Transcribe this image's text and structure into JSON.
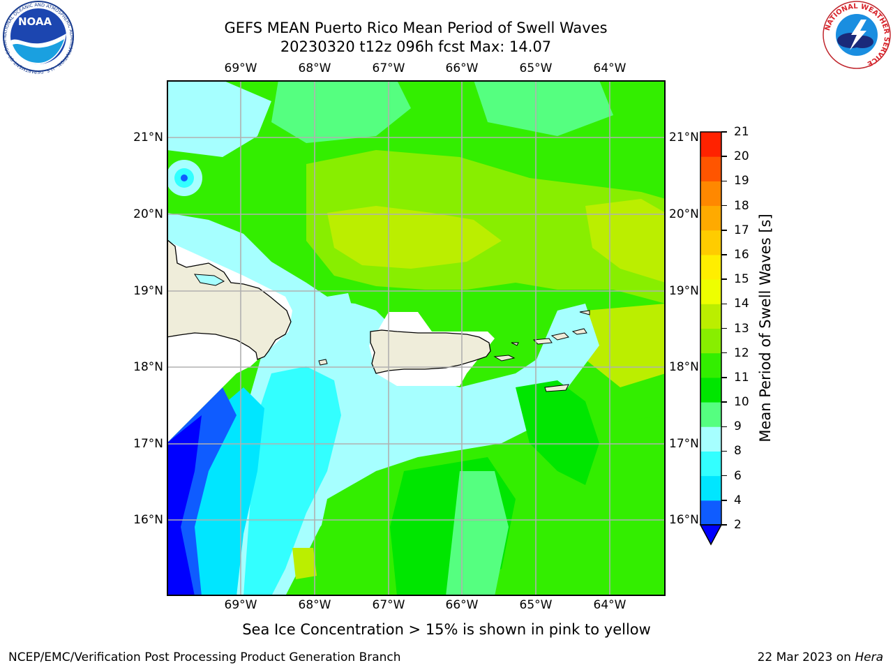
{
  "title": {
    "line1": "GEFS MEAN Puerto Rico Mean Period of Swell Waves",
    "line2": "20230320 t12z 096h fcst   Max: 14.07"
  },
  "map": {
    "lon_ticks": [
      "69°W",
      "68°W",
      "67°W",
      "66°W",
      "65°W",
      "64°W"
    ],
    "lat_ticks": [
      "21°N",
      "20°N",
      "19°N",
      "18°N",
      "17°N",
      "16°N"
    ],
    "lon_range": [
      -70.0,
      -63.25
    ],
    "lat_range": [
      15.0,
      21.75
    ],
    "field": "Mean Period of Swell Waves",
    "max_value": 14.07
  },
  "colorbar": {
    "label": "Mean Period of Swell Waves [s]",
    "levels": [
      "2",
      "4",
      "6",
      "8",
      "9",
      "10",
      "11",
      "12",
      "13",
      "14",
      "15",
      "16",
      "17",
      "18",
      "19",
      "20",
      "21"
    ],
    "colors": [
      "#0f5cff",
      "#00e6ff",
      "#33ffff",
      "#a6ffff",
      "#55ff80",
      "#00e600",
      "#33ee00",
      "#88ee00",
      "#bbee00",
      "#eeff00",
      "#ffee00",
      "#ffcc00",
      "#ffaa00",
      "#ff8800",
      "#ff5500",
      "#ff2200"
    ],
    "under_color": "#0000ff"
  },
  "caption": "Sea Ice Concentration > 15% is shown in pink to yellow",
  "footer": {
    "left": "NCEP/EMC/Verification Post Processing Product Generation Branch",
    "date": "22 Mar 2023 on ",
    "machine": "Hera"
  },
  "logos": {
    "left_text": "NOAA",
    "left_ring_text": "NATIONAL OCEANIC AND ATMOSPHERIC ADMINISTRATION · U.S. DEPARTMENT OF COMMERCE ·",
    "right_ring_text": "NATIONAL WEATHER SERVICE"
  }
}
